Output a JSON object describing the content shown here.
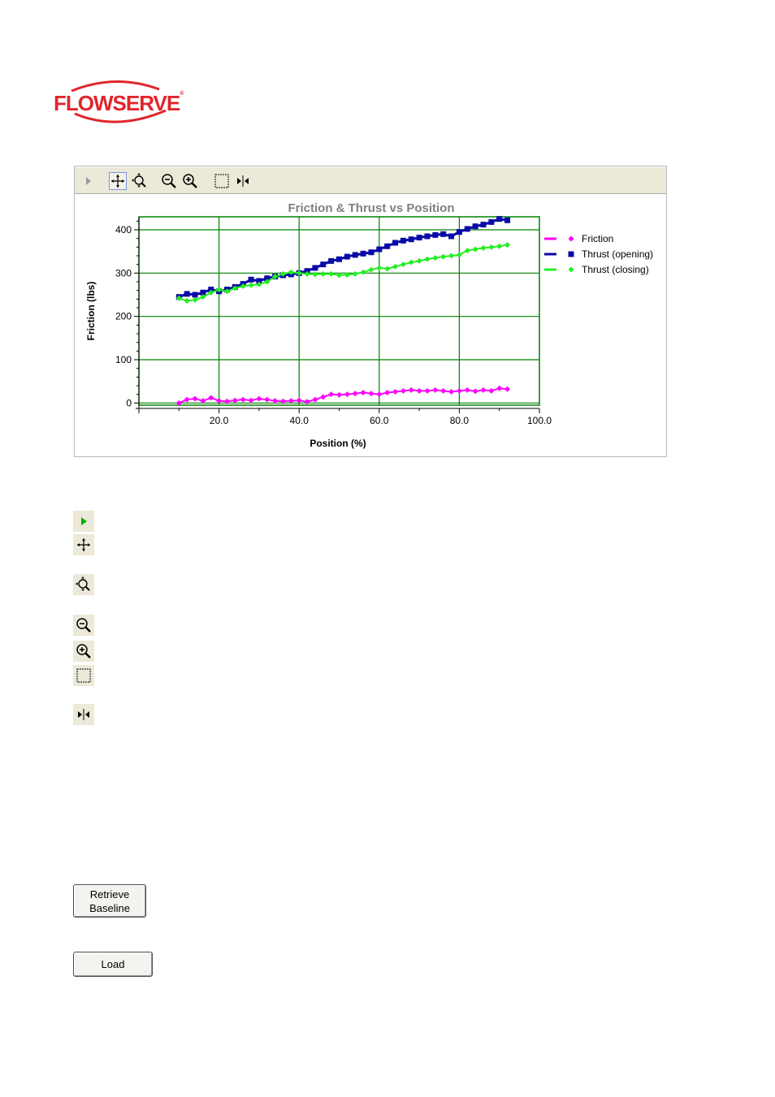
{
  "logo": {
    "text": "FLOWSERVE",
    "reg": "®"
  },
  "toolbar": {
    "buttons": [
      {
        "name": "play-icon",
        "active": false
      },
      {
        "name": "pan-icon",
        "active": true
      },
      {
        "name": "zoom-fit-icon",
        "active": false
      },
      {
        "name": "zoom-out-icon",
        "active": false
      },
      {
        "name": "zoom-in-icon",
        "active": false
      },
      {
        "name": "select-box-icon",
        "active": false
      },
      {
        "name": "cursor-split-icon",
        "active": false
      }
    ]
  },
  "chart_data": {
    "type": "line",
    "title": "Friction & Thrust vs Position",
    "xlabel": "Position (%)",
    "ylabel": "Friction (lbs)",
    "xlim": [
      0,
      100
    ],
    "ylim": [
      -5,
      430
    ],
    "xticks": [
      "20.0",
      "40.0",
      "60.0",
      "80.0",
      "100.0"
    ],
    "xtick_values": [
      20,
      40,
      60,
      80,
      100
    ],
    "yticks": [
      "0",
      "100",
      "200",
      "300",
      "400"
    ],
    "ytick_values": [
      0,
      100,
      200,
      300,
      400
    ],
    "grid": true,
    "legend_position": "right",
    "series": [
      {
        "name": "Friction",
        "color": "#ff00ff",
        "marker": "diamond",
        "x": [
          10,
          12,
          14,
          16,
          18,
          20,
          22,
          24,
          26,
          28,
          30,
          32,
          34,
          36,
          38,
          40,
          42,
          44,
          46,
          48,
          50,
          52,
          54,
          56,
          58,
          60,
          62,
          64,
          66,
          68,
          70,
          72,
          74,
          76,
          78,
          80,
          82,
          84,
          86,
          88,
          90,
          92
        ],
        "y": [
          0,
          8,
          10,
          5,
          12,
          5,
          4,
          6,
          8,
          6,
          10,
          8,
          5,
          4,
          5,
          6,
          3,
          8,
          14,
          20,
          19,
          20,
          22,
          24,
          22,
          20,
          24,
          26,
          28,
          30,
          28,
          28,
          30,
          28,
          26,
          28,
          30,
          27,
          30,
          28,
          34,
          32
        ]
      },
      {
        "name": "Thrust (opening)",
        "color": "#0a0aa8",
        "marker": "square",
        "x": [
          10,
          12,
          14,
          16,
          18,
          20,
          22,
          24,
          26,
          28,
          30,
          32,
          34,
          36,
          38,
          40,
          42,
          44,
          46,
          48,
          50,
          52,
          54,
          56,
          58,
          60,
          62,
          64,
          66,
          68,
          70,
          72,
          74,
          76,
          78,
          80,
          82,
          84,
          86,
          88,
          90,
          92
        ],
        "y": [
          245,
          252,
          250,
          255,
          262,
          258,
          262,
          268,
          275,
          285,
          282,
          288,
          292,
          295,
          297,
          300,
          305,
          312,
          320,
          328,
          332,
          338,
          342,
          345,
          348,
          355,
          362,
          370,
          375,
          378,
          382,
          385,
          388,
          390,
          385,
          395,
          402,
          408,
          412,
          418,
          425,
          422
        ]
      },
      {
        "name": "Thrust (closing)",
        "color": "#22ee22",
        "marker": "diamond",
        "x": [
          10,
          12,
          14,
          16,
          18,
          20,
          22,
          24,
          26,
          28,
          30,
          32,
          34,
          36,
          38,
          40,
          42,
          44,
          46,
          48,
          50,
          52,
          54,
          56,
          58,
          60,
          62,
          64,
          66,
          68,
          70,
          72,
          74,
          76,
          78,
          80,
          82,
          84,
          86,
          88,
          90,
          92
        ],
        "y": [
          242,
          236,
          238,
          245,
          255,
          262,
          258,
          265,
          270,
          272,
          274,
          280,
          292,
          298,
          302,
          300,
          298,
          297,
          298,
          298,
          295,
          296,
          298,
          302,
          308,
          312,
          310,
          315,
          320,
          325,
          328,
          332,
          335,
          338,
          340,
          342,
          352,
          355,
          358,
          360,
          362,
          365
        ]
      }
    ]
  },
  "side_icons": [
    {
      "name": "play-icon",
      "top": 629
    },
    {
      "name": "pan-icon",
      "top": 658
    },
    {
      "name": "zoom-fit-icon",
      "top": 707
    },
    {
      "name": "zoom-out-icon",
      "top": 757
    },
    {
      "name": "zoom-in-icon",
      "top": 789
    },
    {
      "name": "select-box-icon",
      "top": 819
    },
    {
      "name": "cursor-split-icon",
      "top": 867
    }
  ],
  "buttons": {
    "retrieve_line1": "Retrieve",
    "retrieve_line2": "Baseline",
    "load": "Load"
  }
}
